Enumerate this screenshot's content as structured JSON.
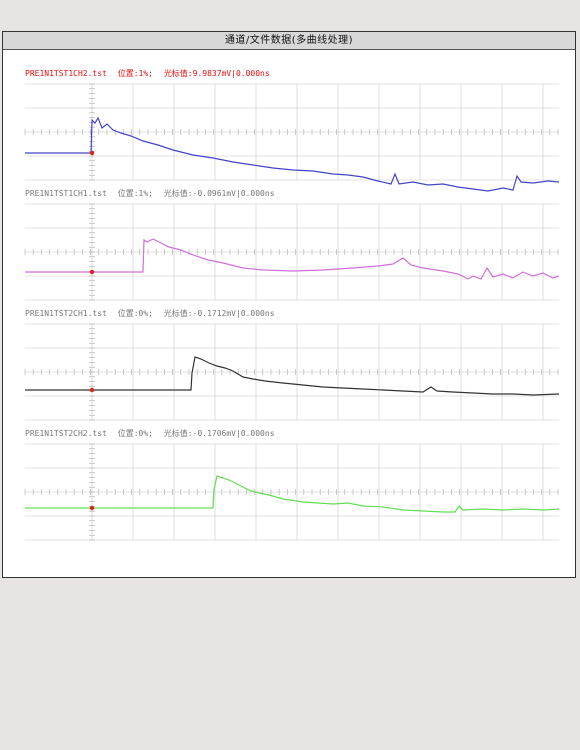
{
  "window": {
    "title": "通道/文件数据(多曲线处理)"
  },
  "colors": {
    "background": "#e9e4e4",
    "grid": "#c8c8c8",
    "ch1": "#4444c8",
    "ch2": "#d070d8",
    "ch3": "#333333",
    "ch4": "#66dd55",
    "label_active": "#e01010",
    "label_inactive": "#777777",
    "marker": "#dd2222"
  },
  "channels": [
    {
      "file": "PRE1N1TST1CH2.tst",
      "position": "位置:1%;",
      "cursor": "光标值:9.9837mV|0.000ns",
      "active": true
    },
    {
      "file": "PRE1N1TST1CH1.tst",
      "position": "位置:1%;",
      "cursor": "光标值:-0.0961mV|0.000ns",
      "active": false
    },
    {
      "file": "PRE1N1TST2CH1.tst",
      "position": "位置:0%;",
      "cursor": "光标值:-0.1712mV|0.000ns",
      "active": false
    },
    {
      "file": "PRE1N1TST2CH2.tst",
      "position": "位置:0%;",
      "cursor": "光标值:-0.1706mV|0.000ns",
      "active": false
    }
  ]
}
